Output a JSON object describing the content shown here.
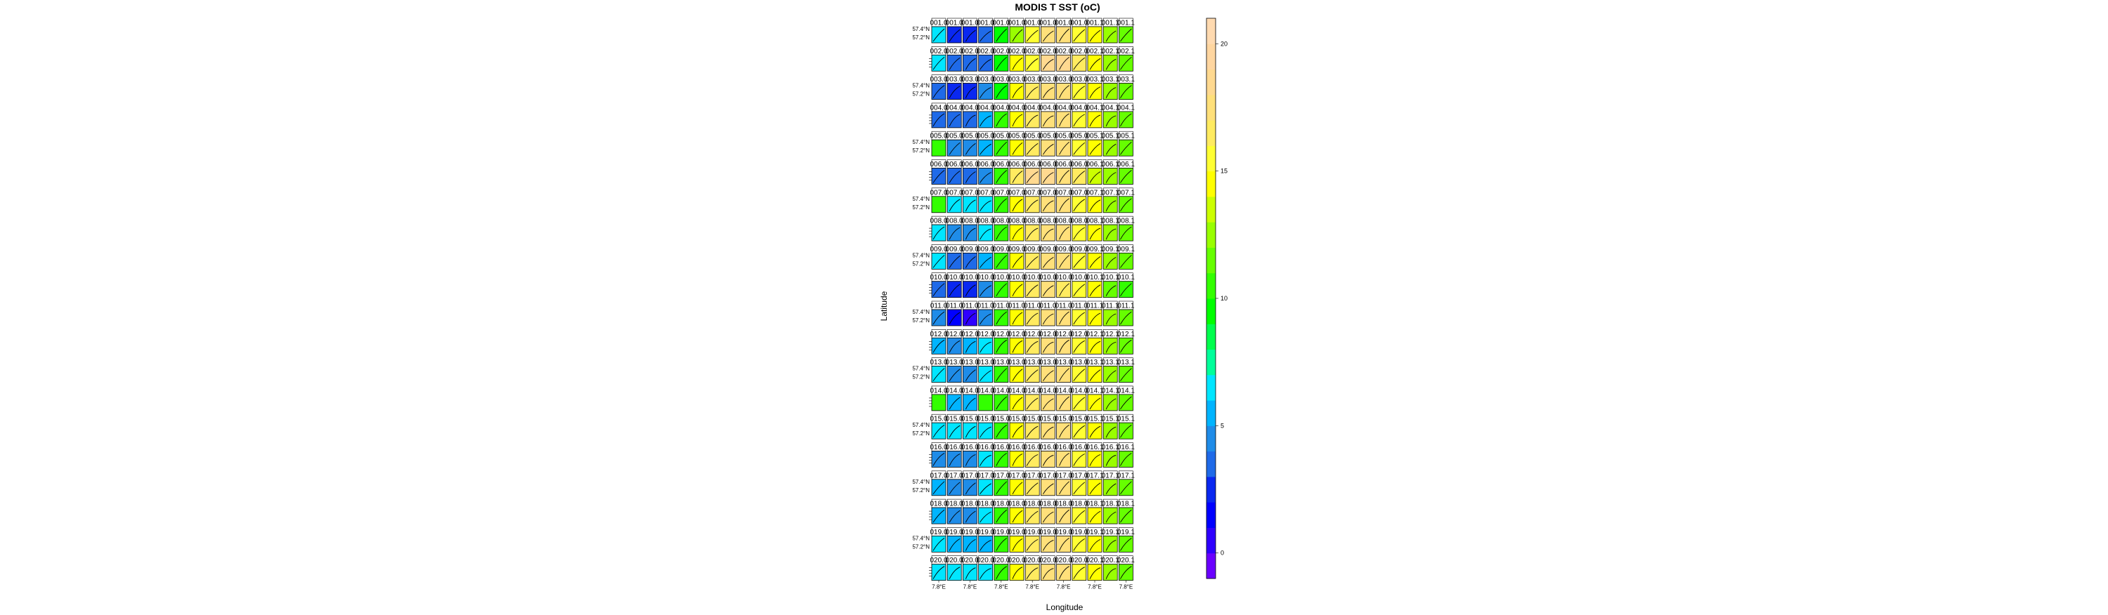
{
  "chart_data": {
    "type": "heatmap",
    "title": "MODIS T SST (oC)",
    "xlabel": "Longitude",
    "ylabel": "Latitude",
    "x_tick_label": "7.8°E",
    "y_tick_labels": [
      "57.4°N",
      "57.2°N"
    ],
    "row_labels": [
      "001",
      "002",
      "003",
      "004",
      "005",
      "006",
      "007",
      "008",
      "009",
      "010",
      "011",
      "012",
      "013",
      "014",
      "015",
      "016",
      "017",
      "018",
      "019",
      "020"
    ],
    "panel_label_suffixes": [
      ".0",
      ".0",
      ".0",
      ".0",
      ".0",
      ".0",
      ".0",
      ".0",
      ".0",
      ".0",
      ".1",
      ".1",
      ".1"
    ],
    "colorkey": {
      "ticks": [
        0,
        5,
        10,
        15,
        20
      ],
      "range": [
        -1,
        21
      ],
      "levels": [
        -1,
        0,
        1,
        2,
        3,
        4,
        5,
        6,
        7,
        8,
        9,
        10,
        11,
        12,
        13,
        14,
        15,
        16,
        17,
        18,
        19,
        20,
        21
      ],
      "colors": [
        "#6a00ff",
        "#2f00ff",
        "#0000ff",
        "#0a28f0",
        "#1f6ae8",
        "#1f8ce8",
        "#00b4ff",
        "#00e6ff",
        "#00ff9a",
        "#00ff4d",
        "#00ff00",
        "#33ff00",
        "#66ff00",
        "#99ff00",
        "#ccff00",
        "#ffff00",
        "#ffff33",
        "#ffeb60",
        "#ffe07a",
        "#ffd990",
        "#ffd6a0",
        "#ffdab0"
      ]
    },
    "panel_values": [
      [
        6,
        2,
        2,
        3,
        9,
        12,
        15,
        17,
        17,
        15,
        14,
        12,
        11
      ],
      [
        6,
        3,
        3,
        3,
        9,
        14,
        15,
        18,
        18,
        16,
        14,
        12,
        11
      ],
      [
        3,
        2,
        2,
        4,
        9,
        14,
        16,
        17,
        17,
        15,
        14,
        12,
        11
      ],
      [
        3,
        3,
        3,
        5,
        10,
        14,
        16,
        17,
        17,
        15,
        14,
        12,
        11
      ],
      [
        10,
        4,
        4,
        5,
        10,
        14,
        16,
        17,
        17,
        15,
        14,
        12,
        11
      ],
      [
        3,
        3,
        3,
        4,
        10,
        16,
        18,
        18,
        17,
        16,
        13,
        12,
        11
      ],
      [
        10,
        6,
        6,
        6,
        10,
        14,
        16,
        17,
        17,
        15,
        14,
        12,
        11
      ],
      [
        6,
        4,
        4,
        6,
        10,
        14,
        16,
        17,
        17,
        15,
        14,
        12,
        11
      ],
      [
        6,
        3,
        3,
        5,
        10,
        14,
        16,
        17,
        17,
        15,
        14,
        12,
        11
      ],
      [
        3,
        2,
        2,
        4,
        10,
        14,
        16,
        17,
        16,
        15,
        14,
        11,
        10
      ],
      [
        4,
        1,
        0,
        4,
        10,
        14,
        16,
        17,
        17,
        15,
        14,
        12,
        11
      ],
      [
        5,
        4,
        5,
        6,
        10,
        14,
        16,
        17,
        17,
        15,
        14,
        12,
        11
      ],
      [
        6,
        4,
        4,
        6,
        10,
        14,
        16,
        17,
        17,
        15,
        14,
        12,
        11
      ],
      [
        10,
        5,
        5,
        10,
        10,
        14,
        16,
        17,
        17,
        15,
        14,
        12,
        11
      ],
      [
        6,
        6,
        6,
        6,
        10,
        14,
        16,
        17,
        17,
        15,
        14,
        12,
        11
      ],
      [
        4,
        4,
        4,
        6,
        10,
        14,
        16,
        17,
        17,
        15,
        14,
        12,
        11
      ],
      [
        5,
        4,
        4,
        6,
        10,
        14,
        16,
        17,
        17,
        15,
        14,
        12,
        11
      ],
      [
        5,
        4,
        4,
        6,
        10,
        14,
        16,
        17,
        17,
        15,
        14,
        12,
        11
      ],
      [
        6,
        5,
        5,
        5,
        10,
        14,
        16,
        17,
        17,
        15,
        14,
        12,
        11
      ],
      [
        6,
        6,
        6,
        6,
        10,
        14,
        16,
        17,
        17,
        15,
        14,
        12,
        11
      ]
    ]
  }
}
